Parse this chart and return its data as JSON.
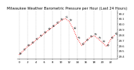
{
  "title": "Milwaukee Weather Barometric Pressure per Hour (Last 24 Hours)",
  "hours": [
    0,
    1,
    2,
    3,
    4,
    5,
    6,
    7,
    8,
    9,
    10,
    11,
    12,
    13,
    14,
    15,
    16,
    17,
    18,
    19,
    20,
    21,
    22,
    23
  ],
  "pressure": [
    29.43,
    29.5,
    29.58,
    29.63,
    29.7,
    29.76,
    29.82,
    29.88,
    29.94,
    30.0,
    30.06,
    30.1,
    30.05,
    29.9,
    29.72,
    29.6,
    29.68,
    29.75,
    29.78,
    29.72,
    29.65,
    29.58,
    29.72,
    29.8
  ],
  "line_color": "#ff0000",
  "marker_color": "#000000",
  "bg_color": "#ffffff",
  "grid_color": "#888888",
  "ylim_min": 29.35,
  "ylim_max": 30.25,
  "ytick_values": [
    29.4,
    29.5,
    29.6,
    29.7,
    29.8,
    29.9,
    30.0,
    30.1,
    30.2
  ],
  "xtick_values": [
    0,
    2,
    4,
    6,
    8,
    10,
    12,
    14,
    16,
    18,
    20,
    22
  ],
  "title_fontsize": 3.8,
  "tick_fontsize": 2.8,
  "label_fontsize": 2.5
}
